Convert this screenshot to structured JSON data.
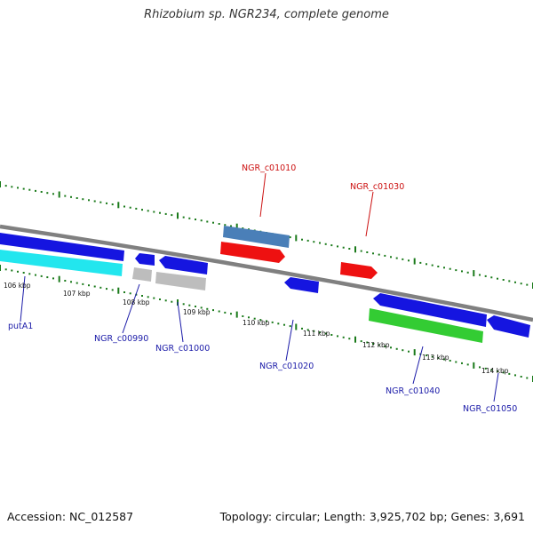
{
  "title": "Rhizobium sp. NGR234, complete genome",
  "footer": {
    "accession": "Accession: NC_012587",
    "topology": "Topology: circular; Length: 3,925,702 bp; Genes: 3,691"
  },
  "colors": {
    "backbone": "#808080",
    "forward_gene": "#1515e0",
    "reverse_gene": "#1515e0",
    "rna_or_red": "#ee1111",
    "steelblue": "#4a7fb8",
    "cyan": "#11eeee",
    "gray": "#c0c0c0",
    "green": "#33cc33",
    "label_blue": "#1a1aa8",
    "label_red": "#cc1111",
    "tick_green": "#1a7a1a"
  },
  "kbp_labels": [
    "106 kbp",
    "107 kbp",
    "108 kbp",
    "109 kbp",
    "110 kbp",
    "111 kbp",
    "112 kbp",
    "113 kbp",
    "114 kbp"
  ],
  "gene_labels": [
    {
      "text": "NGR_c01010",
      "color": "red"
    },
    {
      "text": "NGR_c01030",
      "color": "red"
    },
    {
      "text": "putA1",
      "color": "blue"
    },
    {
      "text": "NGR_c00990",
      "color": "blue"
    },
    {
      "text": "NGR_c01000",
      "color": "blue"
    },
    {
      "text": "NGR_c01020",
      "color": "blue"
    },
    {
      "text": "NGR_c01040",
      "color": "blue"
    },
    {
      "text": "NGR_c01050",
      "color": "blue"
    }
  ]
}
